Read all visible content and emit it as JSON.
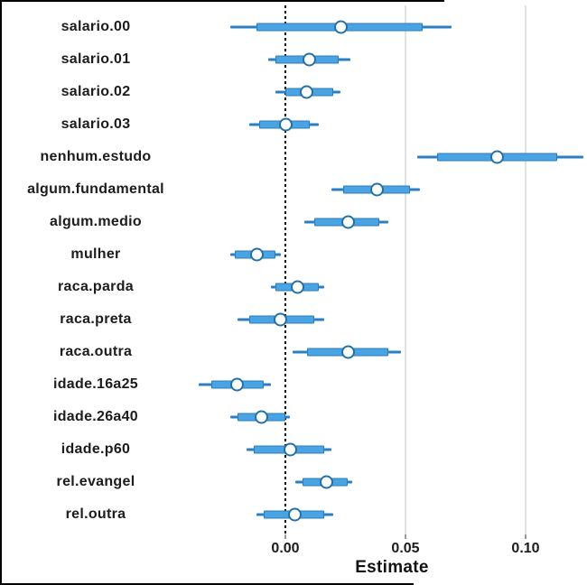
{
  "chart_data": {
    "type": "scatter",
    "subtype": "dot-and-whisker coefficient plot",
    "title": "",
    "xlabel": "Estimate",
    "ylabel": "",
    "xlim": [
      -0.026,
      0.125
    ],
    "x_ticks": [
      0,
      0.05,
      0.1
    ],
    "x_tick_labels": [
      "0.00",
      "0.05",
      "0.10"
    ],
    "reference_line_x": 0,
    "grid": "vertical-only",
    "legend": "none",
    "categories": [
      "salario.00",
      "salario.01",
      "salario.02",
      "salario.03",
      "nenhum.estudo",
      "algum.fundamental",
      "algum.medio",
      "mulher",
      "raca.parda",
      "raca.preta",
      "raca.outra",
      "idade.16a25",
      "idade.26a40",
      "idade.p60",
      "rel.evangel",
      "rel.outra"
    ],
    "points": [
      {
        "label": "salario.00",
        "estimate": 0.023,
        "inner_ci": [
          -0.012,
          0.057
        ],
        "outer_ci": [
          -0.023,
          0.069
        ]
      },
      {
        "label": "salario.01",
        "estimate": 0.01,
        "inner_ci": [
          -0.004,
          0.022
        ],
        "outer_ci": [
          -0.007,
          0.027
        ]
      },
      {
        "label": "salario.02",
        "estimate": 0.009,
        "inner_ci": [
          0.0,
          0.02
        ],
        "outer_ci": [
          -0.004,
          0.023
        ]
      },
      {
        "label": "salario.03",
        "estimate": 0.0,
        "inner_ci": [
          -0.011,
          0.01
        ],
        "outer_ci": [
          -0.015,
          0.014
        ]
      },
      {
        "label": "nenhum.estudo",
        "estimate": 0.088,
        "inner_ci": [
          0.063,
          0.113
        ],
        "outer_ci": [
          0.055,
          0.124
        ]
      },
      {
        "label": "algum.fundamental",
        "estimate": 0.038,
        "inner_ci": [
          0.024,
          0.052
        ],
        "outer_ci": [
          0.019,
          0.056
        ]
      },
      {
        "label": "algum.medio",
        "estimate": 0.026,
        "inner_ci": [
          0.012,
          0.039
        ],
        "outer_ci": [
          0.008,
          0.043
        ]
      },
      {
        "label": "mulher",
        "estimate": -0.012,
        "inner_ci": [
          -0.021,
          -0.004
        ],
        "outer_ci": [
          -0.023,
          -0.002
        ]
      },
      {
        "label": "raca.parda",
        "estimate": 0.005,
        "inner_ci": [
          -0.004,
          0.014
        ],
        "outer_ci": [
          -0.006,
          0.016
        ]
      },
      {
        "label": "raca.preta",
        "estimate": -0.002,
        "inner_ci": [
          -0.015,
          0.012
        ],
        "outer_ci": [
          -0.02,
          0.016
        ]
      },
      {
        "label": "raca.outra",
        "estimate": 0.026,
        "inner_ci": [
          0.009,
          0.043
        ],
        "outer_ci": [
          0.003,
          0.048
        ]
      },
      {
        "label": "idade.16a25",
        "estimate": -0.02,
        "inner_ci": [
          -0.031,
          -0.009
        ],
        "outer_ci": [
          -0.036,
          -0.006
        ]
      },
      {
        "label": "idade.26a40",
        "estimate": -0.01,
        "inner_ci": [
          -0.02,
          0.0
        ],
        "outer_ci": [
          -0.023,
          0.002
        ]
      },
      {
        "label": "idade.p60",
        "estimate": 0.002,
        "inner_ci": [
          -0.013,
          0.016
        ],
        "outer_ci": [
          -0.016,
          0.019
        ]
      },
      {
        "label": "rel.evangel",
        "estimate": 0.017,
        "inner_ci": [
          0.007,
          0.026
        ],
        "outer_ci": [
          0.004,
          0.028
        ]
      },
      {
        "label": "rel.outra",
        "estimate": 0.004,
        "inner_ci": [
          -0.009,
          0.016
        ],
        "outer_ci": [
          -0.012,
          0.02
        ]
      }
    ]
  },
  "colors": {
    "ci_outer_line": "#2b7fc2",
    "ci_inner_fill": "#4aa4e4",
    "ci_inner_edge": "#2b7cbe",
    "point_fill": "#ffffff",
    "point_edge": "#2470a8",
    "gridline": "#e2e2e2",
    "reference_line": "#0a0a0a",
    "text": "#1c1c1c"
  }
}
